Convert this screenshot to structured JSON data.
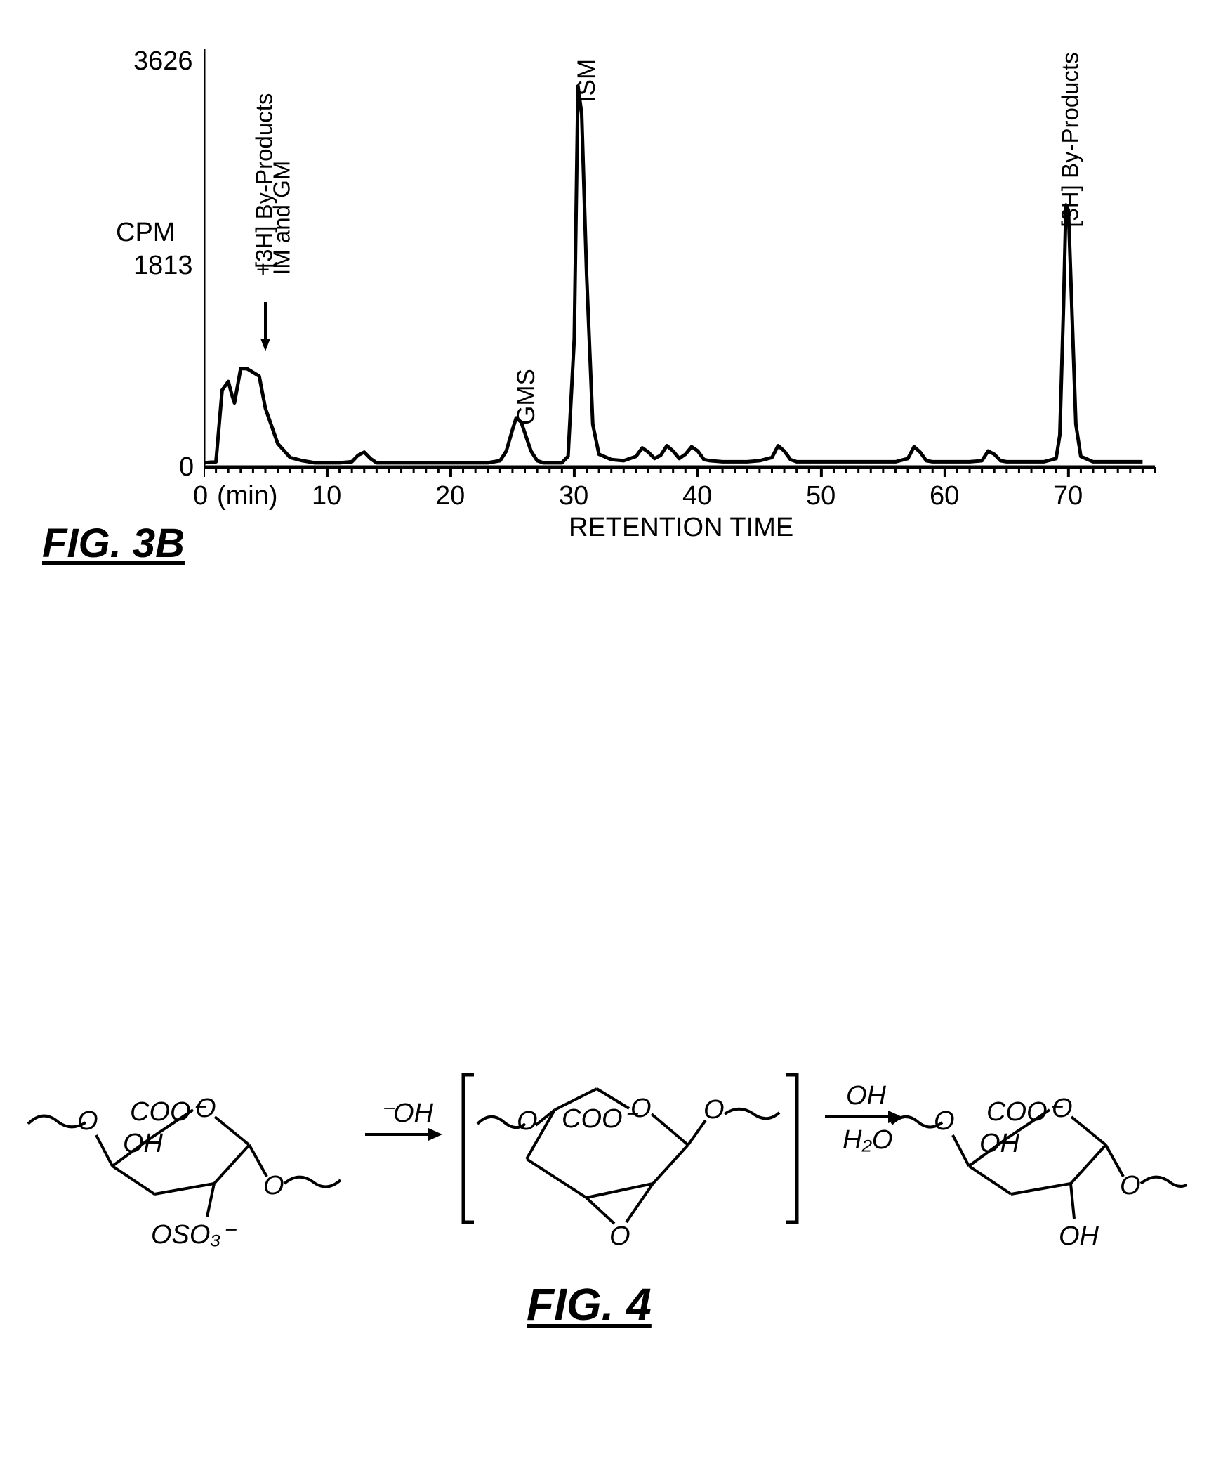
{
  "fig3b": {
    "caption": "FIG. 3B",
    "caption_fontsize": 58,
    "chart": {
      "type": "line",
      "xlabel": "RETENTION TIME",
      "xunit_label": "(min)",
      "ylabel": "CPM",
      "label_fontsize": 38,
      "tick_fontsize": 38,
      "xlim": [
        0,
        77
      ],
      "ylim": [
        0,
        3800
      ],
      "xticks": [
        0,
        10,
        20,
        30,
        40,
        50,
        60,
        70
      ],
      "yticks": [
        0,
        1813,
        3626
      ],
      "stroke_color": "#000000",
      "stroke_width": 5,
      "axis_color": "#000000",
      "axis_width": 4,
      "background_color": "#ffffff",
      "annotations": [
        {
          "label": "[3H] By-Products\n+\nIM and GM",
          "x": 5,
          "rotated": true,
          "arrow": true
        },
        {
          "label": "GMS",
          "x": 25.5,
          "rotated": true
        },
        {
          "label": "ISM",
          "x": 30.5,
          "rotated": true
        },
        {
          "label": "[3H] By-Products",
          "x": 70,
          "rotated": true
        }
      ],
      "data": [
        [
          0,
          40
        ],
        [
          1,
          50
        ],
        [
          1.5,
          720
        ],
        [
          2,
          800
        ],
        [
          2.3,
          670
        ],
        [
          2.5,
          600
        ],
        [
          3,
          920
        ],
        [
          3.5,
          920
        ],
        [
          4.5,
          850
        ],
        [
          5,
          550
        ],
        [
          6,
          220
        ],
        [
          7,
          90
        ],
        [
          8,
          60
        ],
        [
          9,
          40
        ],
        [
          10,
          40
        ],
        [
          11,
          40
        ],
        [
          12,
          50
        ],
        [
          12.5,
          110
        ],
        [
          13,
          140
        ],
        [
          13.5,
          80
        ],
        [
          14,
          40
        ],
        [
          16,
          40
        ],
        [
          18,
          40
        ],
        [
          20,
          40
        ],
        [
          22,
          40
        ],
        [
          23,
          40
        ],
        [
          24,
          60
        ],
        [
          24.5,
          150
        ],
        [
          25,
          350
        ],
        [
          25.3,
          460
        ],
        [
          25.7,
          420
        ],
        [
          26,
          320
        ],
        [
          26.5,
          150
        ],
        [
          27,
          60
        ],
        [
          27.5,
          40
        ],
        [
          28,
          40
        ],
        [
          29,
          40
        ],
        [
          29.5,
          100
        ],
        [
          30,
          1200
        ],
        [
          30.3,
          3560
        ],
        [
          30.6,
          3300
        ],
        [
          31,
          1800
        ],
        [
          31.5,
          400
        ],
        [
          32,
          120
        ],
        [
          33,
          70
        ],
        [
          34,
          60
        ],
        [
          35,
          100
        ],
        [
          35.5,
          180
        ],
        [
          36,
          140
        ],
        [
          36.5,
          80
        ],
        [
          37,
          110
        ],
        [
          37.5,
          200
        ],
        [
          38,
          150
        ],
        [
          38.5,
          80
        ],
        [
          39,
          120
        ],
        [
          39.5,
          190
        ],
        [
          40,
          150
        ],
        [
          40.5,
          70
        ],
        [
          41,
          60
        ],
        [
          42,
          50
        ],
        [
          43,
          50
        ],
        [
          44,
          50
        ],
        [
          45,
          60
        ],
        [
          46,
          90
        ],
        [
          46.5,
          200
        ],
        [
          47,
          150
        ],
        [
          47.5,
          70
        ],
        [
          48,
          50
        ],
        [
          50,
          50
        ],
        [
          52,
          50
        ],
        [
          54,
          50
        ],
        [
          56,
          50
        ],
        [
          57,
          80
        ],
        [
          57.5,
          190
        ],
        [
          58,
          140
        ],
        [
          58.5,
          60
        ],
        [
          59,
          50
        ],
        [
          60,
          50
        ],
        [
          62,
          50
        ],
        [
          63,
          60
        ],
        [
          63.5,
          150
        ],
        [
          64,
          120
        ],
        [
          64.5,
          60
        ],
        [
          65,
          50
        ],
        [
          66,
          50
        ],
        [
          67,
          50
        ],
        [
          68,
          50
        ],
        [
          69,
          80
        ],
        [
          69.3,
          300
        ],
        [
          69.6,
          1500
        ],
        [
          69.8,
          2450
        ],
        [
          70,
          2400
        ],
        [
          70.3,
          1400
        ],
        [
          70.6,
          400
        ],
        [
          71,
          100
        ],
        [
          72,
          50
        ],
        [
          74,
          50
        ],
        [
          76,
          50
        ]
      ]
    }
  },
  "fig4": {
    "caption": "FIG. 4",
    "caption_fontsize": 64,
    "scheme": {
      "type": "chemical-scheme",
      "structures": [
        {
          "labels": [
            "O",
            "COO⁻",
            "OH",
            "OSO₃⁻",
            "O",
            "O"
          ]
        },
        {
          "labels": [
            "O",
            "COO⁻",
            "O",
            "O",
            "O"
          ],
          "bracketed": true
        },
        {
          "labels": [
            "O",
            "COO⁻",
            "OH",
            "OH",
            "O",
            "O"
          ]
        }
      ],
      "arrows": [
        {
          "top": "⁻OH",
          "bottom": ""
        },
        {
          "top": "OH",
          "bottom": "H₂O"
        }
      ],
      "label_fontsize": 38,
      "font_style": "italic",
      "stroke_color": "#000000",
      "stroke_width": 4
    }
  }
}
